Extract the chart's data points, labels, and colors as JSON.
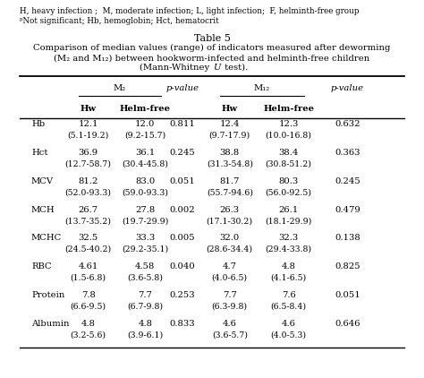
{
  "footnote1": "H, heavy infection ;  M, moderate infection; L, light infection;  F, helminth-free group",
  "footnote2": "ᵖNot significant; Hb, hemoglobin; Hct, hematocrit",
  "title_line1": "Table 5",
  "title_line2": "Comparison of median values (range) of indicators measured after deworming",
  "title_line3": "(M₂ and M₁₂) between hookworm-infected and helminth-free children",
  "title_line4": "(Mann-Whitney U test).",
  "rows": [
    [
      "Hb",
      "12.1",
      "(5.1-19.2)",
      "12.0",
      "(9.2-15.7)",
      "0.811",
      "12.4",
      "(9.7-17.9)",
      "12.3",
      "(10.0-16.8)",
      "0.632"
    ],
    [
      "Hct",
      "36.9",
      "(12.7-58.7)",
      "36.1",
      "(30.4-45.8)",
      "0.245",
      "38.8",
      "(31.3-54.8)",
      "38.4",
      "(30.8-51.2)",
      "0.363"
    ],
    [
      "MCV",
      "81.2",
      "(52.0-93.3)",
      "83.0",
      "(59.0-93.3)",
      "0.051",
      "81.7",
      "(55.7-94.6)",
      "80.3",
      "(56.0-92.5)",
      "0.245"
    ],
    [
      "MCH",
      "26.7",
      "(13.7-35.2)",
      "27.8",
      "(19.7-29.9)",
      "0.002",
      "26.3",
      "(17.1-30.2)",
      "26.1",
      "(18.1-29.9)",
      "0.479"
    ],
    [
      "MCHC",
      "32.5",
      "(24.5-40.2)",
      "33.3",
      "(29.2-35.1)",
      "0.005",
      "32.0",
      "(28.6-34.4)",
      "32.3",
      "(29.4-33.8)",
      "0.138"
    ],
    [
      "RBC",
      "4.61",
      "(1.5-6.8)",
      "4.58",
      "(3.6-5.8)",
      "0.040",
      "4.7",
      "(4.0-6.5)",
      "4.8",
      "(4.1-6.5)",
      "0.825"
    ],
    [
      "Protein",
      "7.8",
      "(6.6-9.5)",
      "7.7",
      "(6.7-9.8)",
      "0.253",
      "7.7",
      "(6.3-9.8)",
      "7.6",
      "(6.5-8.4)",
      "0.051"
    ],
    [
      "Albumin",
      "4.8",
      "(3.2-5.6)",
      "4.8",
      "(3.9-6.1)",
      "0.833",
      "4.6",
      "(3.6-5.7)",
      "4.6",
      "(4.0-5.3)",
      "0.646"
    ]
  ],
  "bg_color": "#ffffff",
  "text_color": "#000000",
  "font_size": 7.2,
  "title_font_size": 8.0
}
